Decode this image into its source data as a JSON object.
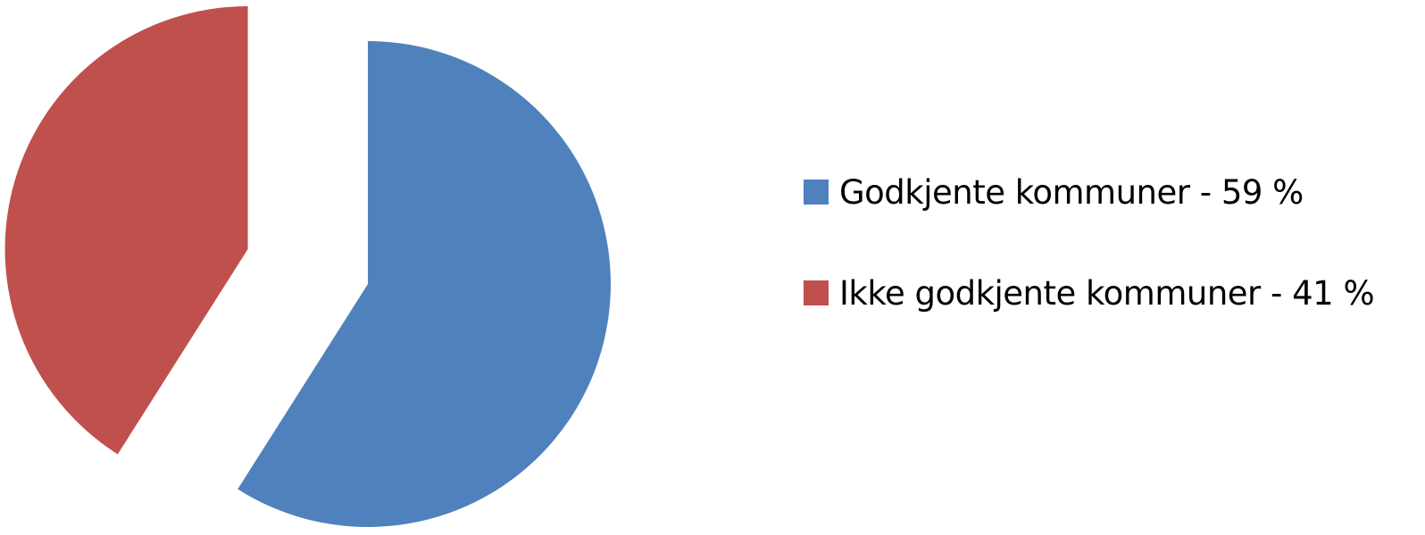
{
  "chart_data": {
    "type": "pie",
    "title": "",
    "series": [
      {
        "values": [
          59,
          41
        ]
      }
    ],
    "slices": [
      {
        "label": "Godkjente kommuner - 59 %",
        "value": 59,
        "color": "#4F81BD",
        "exploded": false
      },
      {
        "label": "Ikke godkjente kommuner - 41 %",
        "value": 41,
        "color": "#C0504D",
        "exploded": true
      }
    ],
    "legend": {
      "position": "right"
    },
    "start_angle": "12 o'clock",
    "direction": "clockwise"
  }
}
